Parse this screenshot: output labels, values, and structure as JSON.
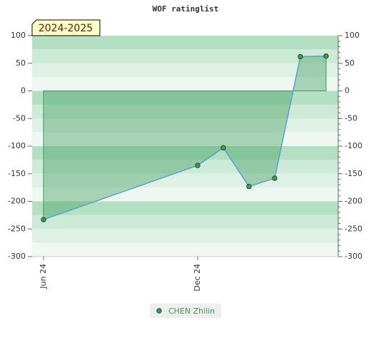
{
  "chart_data": {
    "type": "area",
    "title": "WOF ratinglist",
    "season_label": "2024-2025",
    "x": [
      "2024-06",
      "2024-12",
      "2025-01",
      "2025-02",
      "2025-03",
      "2025-04",
      "2025-05"
    ],
    "xticks": [
      {
        "value": "2024-06",
        "label": "Jun 24"
      },
      {
        "value": "2024-12",
        "label": "Dec 24"
      }
    ],
    "series": [
      {
        "name": "CHEN Zhilin",
        "color": "#3c9a5a",
        "line_color": "#5aa0d0",
        "values": [
          -233,
          -135,
          -103,
          -173,
          -158,
          62,
          63
        ]
      }
    ],
    "ylim": [
      -300,
      100
    ],
    "yticks": [
      -300,
      -250,
      -200,
      -150,
      -100,
      -50,
      0,
      50,
      100
    ],
    "y2lim": [
      -300,
      100
    ],
    "y2ticks": [
      -300,
      -250,
      -200,
      -150,
      -100,
      -50,
      0,
      50,
      100
    ]
  }
}
